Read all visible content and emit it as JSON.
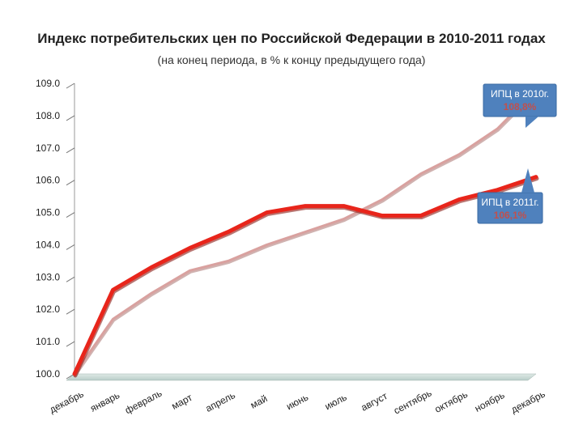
{
  "chart_data": {
    "type": "line",
    "title": "Индекс потребительских цен по Российской Федерации в 2010-2011 годах",
    "subtitle": "(на конец периода, в % к концу предыдущего года)",
    "categories": [
      "декабрь",
      "январь",
      "февраль",
      "март",
      "апрель",
      "май",
      "июнь",
      "июль",
      "август",
      "сентябрь",
      "октябрь",
      "ноябрь",
      "декабрь"
    ],
    "ylim": [
      100.0,
      109.0
    ],
    "yticks": [
      "100.0",
      "101.0",
      "102.0",
      "103.0",
      "104.0",
      "105.0",
      "106.0",
      "107.0",
      "108.0",
      "109.0"
    ],
    "grid": false,
    "series": [
      {
        "key": "2010",
        "color": "#d9a19f",
        "values": [
          100.0,
          101.7,
          102.5,
          103.2,
          103.5,
          104.0,
          104.4,
          104.8,
          105.4,
          106.2,
          106.8,
          107.6,
          108.8
        ]
      },
      {
        "key": "2011",
        "color": "#e8251b",
        "values": [
          100.0,
          102.6,
          103.3,
          103.9,
          104.4,
          105.0,
          105.2,
          105.2,
          104.9,
          104.9,
          105.4,
          105.7,
          106.1
        ]
      }
    ],
    "annotations": [
      {
        "series": "2010",
        "label": "ИПЦ в 2010г.",
        "value": "108,8%"
      },
      {
        "series": "2011",
        "label": "ИПЦ в 2011г.",
        "value": "106,1%"
      }
    ]
  }
}
